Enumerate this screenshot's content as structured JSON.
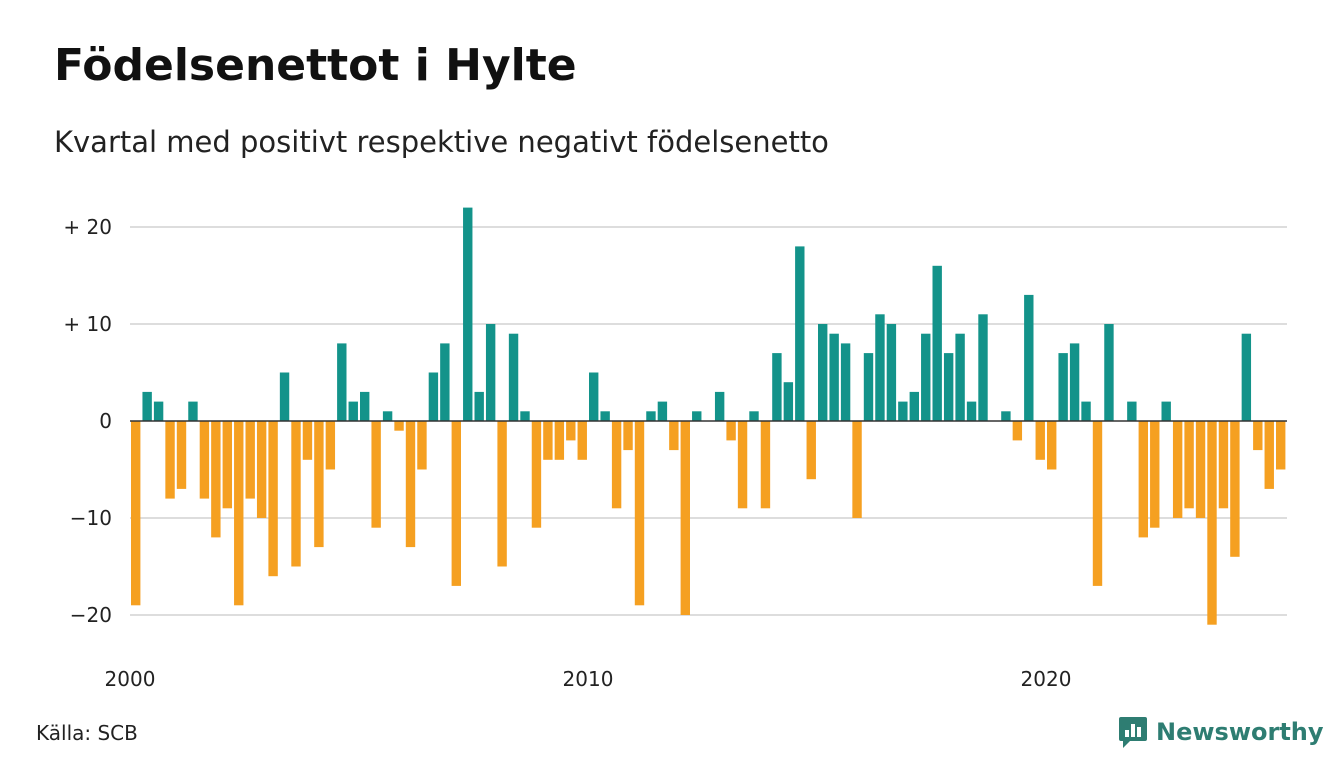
{
  "colors": {
    "positive": "#13938a",
    "negative": "#f5a021",
    "grid": "#dddddd",
    "zero": "#333333",
    "brand": "#2e7d72"
  },
  "source": "Källa: SCB",
  "brand": {
    "name": "Newsworthy",
    "icon": "newsworthy-logo-icon"
  },
  "chart_data": {
    "type": "bar",
    "title": "Födelsenettot i Hylte",
    "subtitle": "Kvartal med positivt respektive negativt födelsenetto",
    "x_start": "2000 Q1",
    "x_ticks": [
      {
        "value": 2000,
        "label": "2000"
      },
      {
        "value": 2010,
        "label": "2010"
      },
      {
        "value": 2020,
        "label": "2020"
      }
    ],
    "y_ticks": [
      {
        "value": 20,
        "label": "+ 20"
      },
      {
        "value": 10,
        "label": "+ 10"
      },
      {
        "value": 0,
        "label": "0"
      },
      {
        "value": -10,
        "label": "−10"
      },
      {
        "value": -20,
        "label": "−20"
      }
    ],
    "ylim": [
      -22,
      22
    ],
    "grid": true,
    "values": [
      -19,
      3,
      2,
      -8,
      -7,
      2,
      -8,
      -12,
      -9,
      -19,
      -8,
      -10,
      -16,
      5,
      -15,
      -4,
      -13,
      -5,
      8,
      2,
      3,
      -11,
      1,
      -1,
      -13,
      -5,
      5,
      8,
      -17,
      22,
      3,
      10,
      -15,
      9,
      1,
      -11,
      -4,
      -4,
      -2,
      -4,
      5,
      1,
      -9,
      -3,
      -19,
      1,
      2,
      -3,
      -20,
      1,
      0,
      3,
      -2,
      -9,
      1,
      -9,
      7,
      4,
      18,
      -6,
      10,
      9,
      8,
      -10,
      7,
      11,
      10,
      2,
      3,
      9,
      16,
      7,
      9,
      2,
      11,
      0,
      1,
      -2,
      13,
      -4,
      -5,
      7,
      8,
      2,
      -17,
      10,
      0,
      2,
      -12,
      -11,
      2,
      -10,
      -9,
      -10,
      -21,
      -9,
      -14,
      9,
      -3,
      -7,
      -5
    ]
  }
}
